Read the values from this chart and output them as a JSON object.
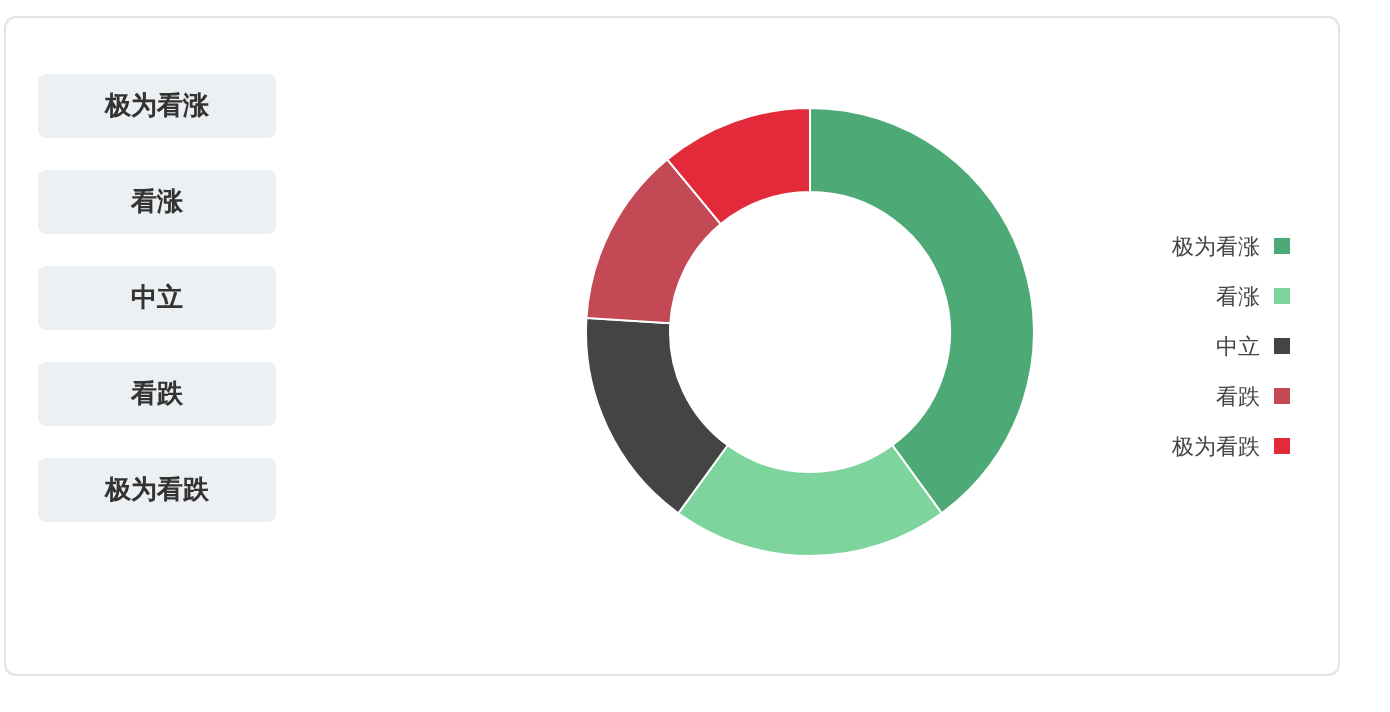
{
  "chart_data": {
    "type": "donut",
    "categories": [
      "极为看涨",
      "看涨",
      "中立",
      "看跌",
      "极为看跌"
    ],
    "values": [
      40,
      20,
      16,
      13,
      11
    ],
    "colors": [
      "#4daa76",
      "#7dd49d",
      "#444444",
      "#c34a54",
      "#e32a3b"
    ],
    "legend": "right"
  }
}
